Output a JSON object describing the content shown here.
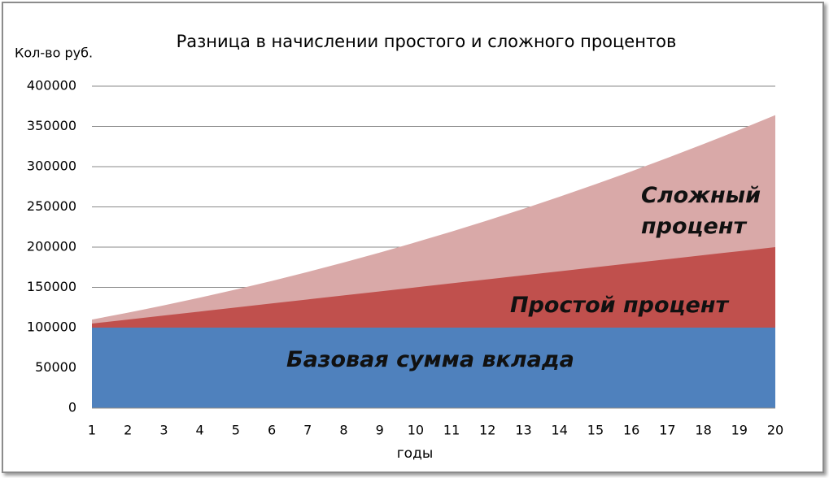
{
  "chart_data": {
    "type": "area",
    "title": "Разница в начислении простого и сложного процентов",
    "y_label": "Кол-во руб.",
    "x_label": "годы",
    "categories": [
      1,
      2,
      3,
      4,
      5,
      6,
      7,
      8,
      9,
      10,
      11,
      12,
      13,
      14,
      15,
      16,
      17,
      18,
      19,
      20
    ],
    "series": [
      {
        "name": "Сложный процент",
        "color": "#d9a9a8",
        "values": [
          110000,
          118500,
          127600,
          137200,
          147300,
          158000,
          169200,
          180900,
          193200,
          206000,
          219300,
          233200,
          247600,
          262600,
          278100,
          294200,
          310800,
          328000,
          345700,
          364000
        ]
      },
      {
        "name": "Простой процент",
        "color": "#c0504d",
        "values": [
          105000,
          110000,
          115000,
          120000,
          125000,
          130000,
          135000,
          140000,
          145000,
          150000,
          155000,
          160000,
          165000,
          170000,
          175000,
          180000,
          185000,
          190000,
          195000,
          200000
        ]
      },
      {
        "name": "Базовая сумма вклада",
        "color": "#4f81bd",
        "values": [
          100000,
          100000,
          100000,
          100000,
          100000,
          100000,
          100000,
          100000,
          100000,
          100000,
          100000,
          100000,
          100000,
          100000,
          100000,
          100000,
          100000,
          100000,
          100000,
          100000
        ]
      }
    ],
    "ylim": [
      0,
      400000
    ],
    "yticks": [
      0,
      50000,
      100000,
      150000,
      200000,
      250000,
      300000,
      350000,
      400000
    ],
    "grid": true
  }
}
